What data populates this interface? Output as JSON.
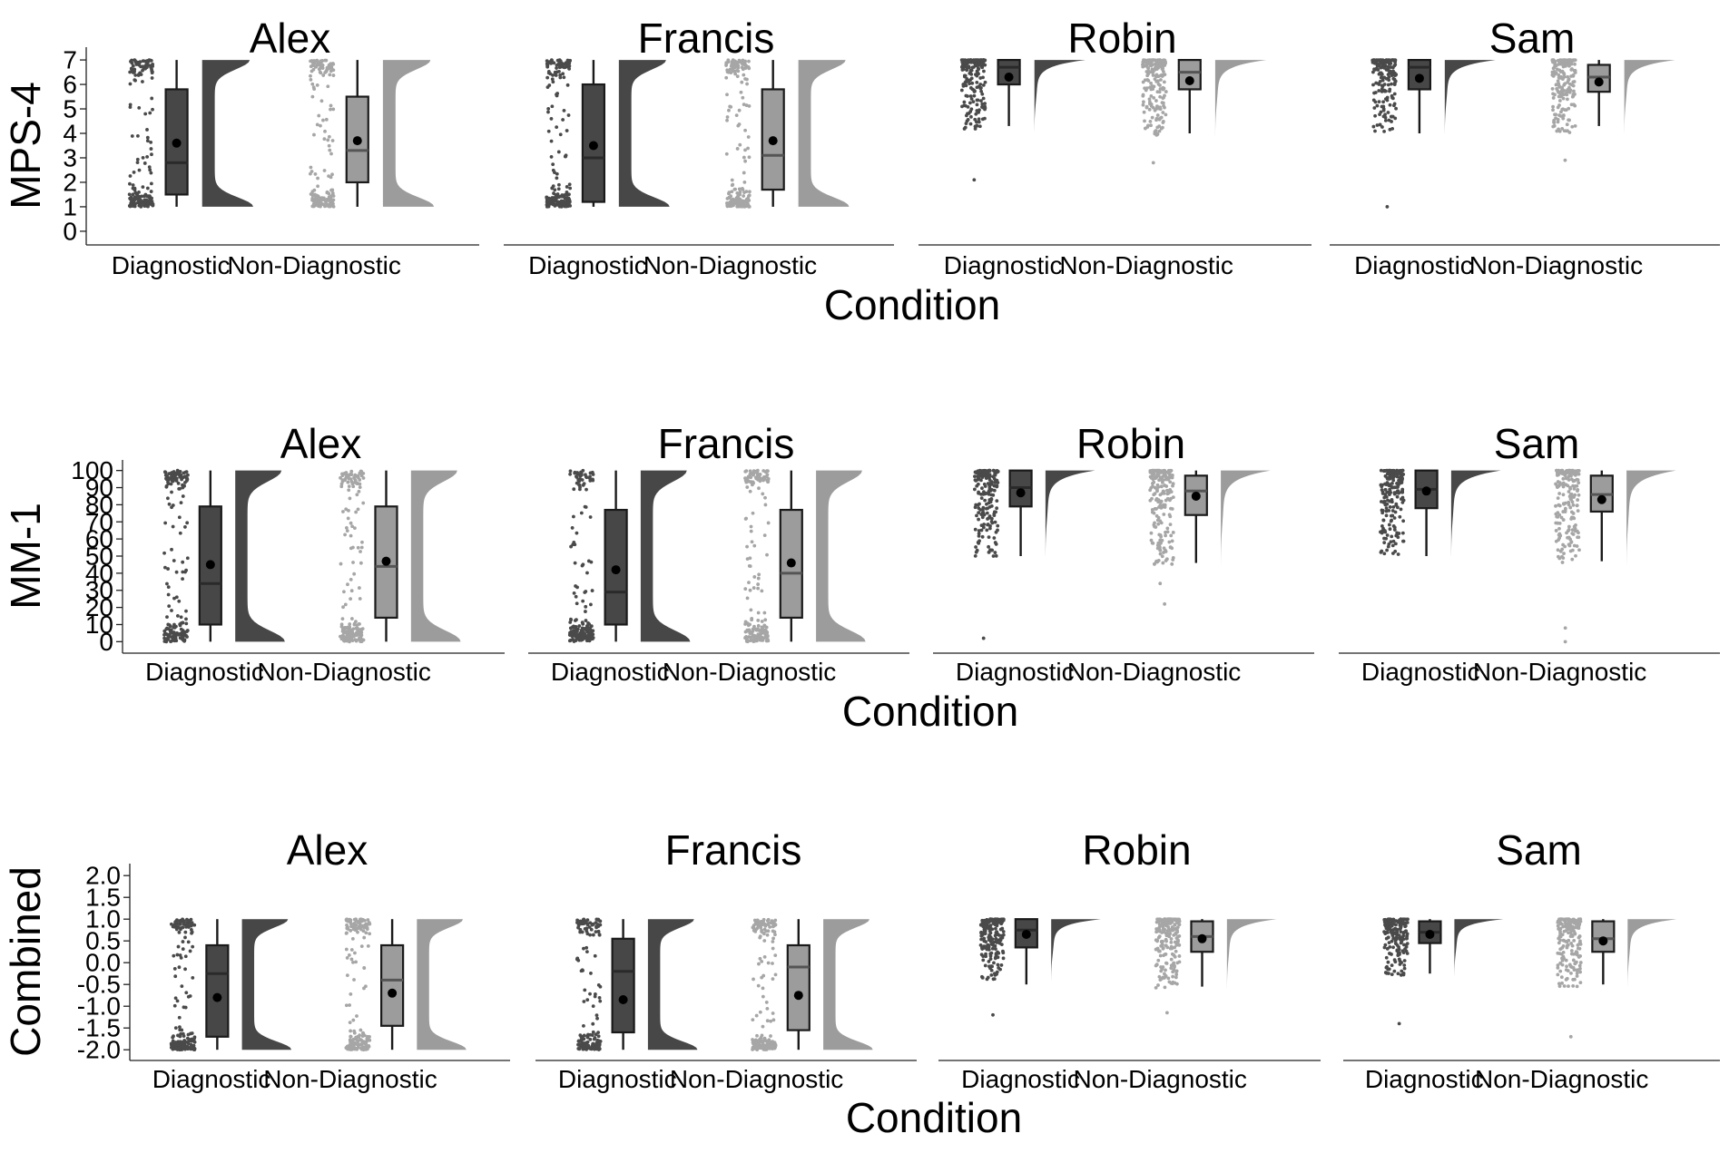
{
  "figure": {
    "facets": [
      "Alex",
      "Francis",
      "Robin",
      "Sam"
    ],
    "categories": [
      "Diagnostic",
      "Non-Diagnostic"
    ],
    "xlabel": "Condition",
    "colors": {
      "diagnostic_fill": "#474747",
      "diagnostic_points": "#4a4a4a",
      "non_diagnostic_fill": "#9c9c9c",
      "non_diagnostic_points": "#a6a6a6",
      "line": "#1a1a1a",
      "mean_marker": "#000000"
    }
  },
  "chart_data": [
    {
      "type": "raincloud",
      "ylabel": "MPS-4",
      "xlabel": "Condition",
      "ylim": [
        -0.3,
        7.3
      ],
      "yticks": [
        "0",
        "1",
        "2",
        "3",
        "4",
        "5",
        "6",
        "7"
      ],
      "facets": [
        {
          "title": "Alex",
          "groups": [
            {
              "category": "Diagnostic",
              "min": 1,
              "q1": 1.5,
              "median": 2.8,
              "q3": 5.8,
              "max": 7,
              "mean": 3.6,
              "range": [
                1,
                7
              ],
              "shape": "bimodal"
            },
            {
              "category": "Non-Diagnostic",
              "min": 1,
              "q1": 2.0,
              "median": 3.3,
              "q3": 5.5,
              "max": 7,
              "mean": 3.7,
              "range": [
                1,
                7
              ],
              "shape": "bimodal"
            }
          ]
        },
        {
          "title": "Francis",
          "groups": [
            {
              "category": "Diagnostic",
              "min": 1,
              "q1": 1.2,
              "median": 3.0,
              "q3": 6.0,
              "max": 7,
              "mean": 3.5,
              "range": [
                1,
                7
              ],
              "shape": "bimodal"
            },
            {
              "category": "Non-Diagnostic",
              "min": 1,
              "q1": 1.7,
              "median": 3.1,
              "q3": 5.8,
              "max": 7,
              "mean": 3.7,
              "range": [
                1,
                7
              ],
              "shape": "bimodal"
            }
          ]
        },
        {
          "title": "Robin",
          "groups": [
            {
              "category": "Diagnostic",
              "min": 4.3,
              "q1": 6.0,
              "median": 6.7,
              "q3": 7,
              "max": 7,
              "mean": 6.3,
              "range": [
                4.1,
                7
              ],
              "outliers": [
                2.1
              ],
              "shape": "skewed"
            },
            {
              "category": "Non-Diagnostic",
              "min": 4.0,
              "q1": 5.8,
              "median": 6.5,
              "q3": 7,
              "max": 7,
              "mean": 6.15,
              "range": [
                3.9,
                7
              ],
              "outliers": [
                2.8
              ],
              "shape": "skewed"
            }
          ]
        },
        {
          "title": "Sam",
          "groups": [
            {
              "category": "Diagnostic",
              "min": 4.0,
              "q1": 5.8,
              "median": 6.7,
              "q3": 7,
              "max": 7,
              "mean": 6.25,
              "range": [
                4.0,
                7
              ],
              "outliers": [
                1.0
              ],
              "shape": "skewed"
            },
            {
              "category": "Non-Diagnostic",
              "min": 4.3,
              "q1": 5.7,
              "median": 6.3,
              "q3": 6.8,
              "max": 7,
              "mean": 6.1,
              "range": [
                4.0,
                7
              ],
              "outliers": [
                2.9
              ],
              "shape": "skewed"
            }
          ]
        }
      ]
    },
    {
      "type": "raincloud",
      "ylabel": "MM-1",
      "xlabel": "Condition",
      "ylim": [
        -3,
        103
      ],
      "yticks": [
        "0",
        "10",
        "20",
        "30",
        "40",
        "50",
        "60",
        "70",
        "80",
        "90",
        "100"
      ],
      "facets": [
        {
          "title": "Alex",
          "groups": [
            {
              "category": "Diagnostic",
              "min": 0,
              "q1": 10,
              "median": 34,
              "q3": 79,
              "max": 100,
              "mean": 45,
              "range": [
                0,
                100
              ],
              "shape": "bimodal"
            },
            {
              "category": "Non-Diagnostic",
              "min": 0,
              "q1": 14,
              "median": 44,
              "q3": 79,
              "max": 100,
              "mean": 47,
              "range": [
                0,
                100
              ],
              "shape": "bimodal"
            }
          ]
        },
        {
          "title": "Francis",
          "groups": [
            {
              "category": "Diagnostic",
              "min": 0,
              "q1": 10,
              "median": 29,
              "q3": 77,
              "max": 100,
              "mean": 42,
              "range": [
                0,
                100
              ],
              "shape": "bimodal"
            },
            {
              "category": "Non-Diagnostic",
              "min": 0,
              "q1": 14,
              "median": 40,
              "q3": 77,
              "max": 100,
              "mean": 46,
              "range": [
                0,
                100
              ],
              "shape": "bimodal"
            }
          ]
        },
        {
          "title": "Robin",
          "groups": [
            {
              "category": "Diagnostic",
              "min": 50,
              "q1": 79,
              "median": 90,
              "q3": 100,
              "max": 100,
              "mean": 87,
              "range": [
                50,
                100
              ],
              "outliers": [
                2
              ],
              "shape": "skewed"
            },
            {
              "category": "Non-Diagnostic",
              "min": 46,
              "q1": 74,
              "median": 88,
              "q3": 97,
              "max": 100,
              "mean": 85,
              "range": [
                45,
                100
              ],
              "outliers": [
                22,
                34
              ],
              "shape": "skewed"
            }
          ]
        },
        {
          "title": "Sam",
          "groups": [
            {
              "category": "Diagnostic",
              "min": 50,
              "q1": 78,
              "median": 89,
              "q3": 100,
              "max": 100,
              "mean": 88,
              "range": [
                50,
                100
              ],
              "shape": "skewed"
            },
            {
              "category": "Non-Diagnostic",
              "min": 47,
              "q1": 76,
              "median": 86,
              "q3": 97,
              "max": 100,
              "mean": 83,
              "range": [
                45,
                100
              ],
              "outliers": [
                0,
                8
              ],
              "shape": "skewed"
            }
          ]
        }
      ]
    },
    {
      "type": "raincloud",
      "ylabel": "Combined",
      "xlabel": "Condition",
      "ylim": [
        -2.1,
        2.15
      ],
      "yticks": [
        "-2.0",
        "-1.5",
        "-1.0",
        "-0.5",
        "0.0",
        "0.5",
        "1.0",
        "1.5",
        "2.0"
      ],
      "facets": [
        {
          "title": "Alex",
          "groups": [
            {
              "category": "Diagnostic",
              "min": -2.0,
              "q1": -1.7,
              "median": -0.25,
              "q3": 0.4,
              "max": 1.0,
              "mean": -0.8,
              "range": [
                -2.0,
                1.0
              ],
              "shape": "bimodal"
            },
            {
              "category": "Non-Diagnostic",
              "min": -2.0,
              "q1": -1.45,
              "median": -0.4,
              "q3": 0.4,
              "max": 1.0,
              "mean": -0.7,
              "range": [
                -2.0,
                1.0
              ],
              "shape": "bimodal"
            }
          ]
        },
        {
          "title": "Francis",
          "groups": [
            {
              "category": "Diagnostic",
              "min": -2.0,
              "q1": -1.6,
              "median": -0.2,
              "q3": 0.55,
              "max": 1.0,
              "mean": -0.85,
              "range": [
                -2.0,
                1.0
              ],
              "shape": "bimodal"
            },
            {
              "category": "Non-Diagnostic",
              "min": -2.0,
              "q1": -1.55,
              "median": -0.1,
              "q3": 0.4,
              "max": 1.0,
              "mean": -0.75,
              "range": [
                -2.0,
                1.0
              ],
              "shape": "bimodal"
            }
          ]
        },
        {
          "title": "Robin",
          "groups": [
            {
              "category": "Diagnostic",
              "min": -0.5,
              "q1": 0.35,
              "median": 0.75,
              "q3": 1.0,
              "max": 1.0,
              "mean": 0.65,
              "range": [
                -0.4,
                1.0
              ],
              "outliers": [
                -1.2
              ],
              "shape": "skewed"
            },
            {
              "category": "Non-Diagnostic",
              "min": -0.55,
              "q1": 0.25,
              "median": 0.6,
              "q3": 0.95,
              "max": 1.0,
              "mean": 0.55,
              "range": [
                -0.6,
                1.0
              ],
              "outliers": [
                -1.15
              ],
              "shape": "skewed"
            }
          ]
        },
        {
          "title": "Sam",
          "groups": [
            {
              "category": "Diagnostic",
              "min": -0.25,
              "q1": 0.45,
              "median": 0.7,
              "q3": 0.95,
              "max": 1.0,
              "mean": 0.65,
              "range": [
                -0.3,
                1.0
              ],
              "outliers": [
                -1.4
              ],
              "shape": "skewed"
            },
            {
              "category": "Non-Diagnostic",
              "min": -0.5,
              "q1": 0.25,
              "median": 0.55,
              "q3": 0.95,
              "max": 1.0,
              "mean": 0.5,
              "range": [
                -0.55,
                1.0
              ],
              "outliers": [
                -1.7
              ],
              "shape": "skewed"
            }
          ]
        }
      ]
    }
  ]
}
